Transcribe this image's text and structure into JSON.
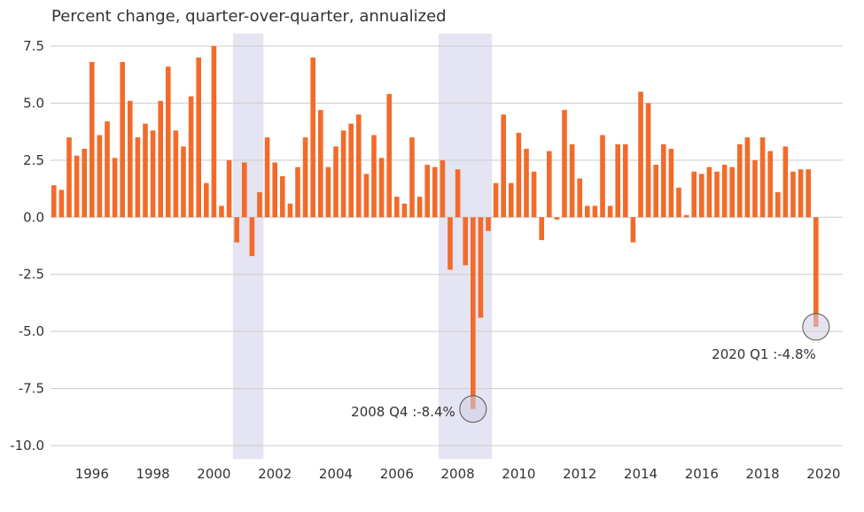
{
  "chart_data": {
    "type": "bar",
    "title": "Percent change, quarter-over-quarter, annualized",
    "xlabel": "",
    "ylabel": "",
    "ylim": [
      -10.0,
      7.5
    ],
    "yticks": [
      "7.5",
      "5.0",
      "2.5",
      "0.0",
      "-2.5",
      "-5.0",
      "-7.5",
      "-10.0"
    ],
    "xticks": [
      "1996",
      "1998",
      "2000",
      "2002",
      "2004",
      "2006",
      "2008",
      "2010",
      "2012",
      "2014",
      "2016",
      "2018",
      "2020"
    ],
    "grid": true,
    "start_period": "1995 Q1",
    "frequency": "quarterly",
    "colors": {
      "bar": "#f26b2a",
      "recession": "#e4e4f2",
      "grid": "#cccccc"
    },
    "recessions": [
      {
        "start": "2001 Q1",
        "end": "2001 Q4"
      },
      {
        "start": "2007 Q4",
        "end": "2009 Q2"
      }
    ],
    "series": [
      {
        "values": [
          1.4,
          1.2,
          3.5,
          2.7,
          3.0,
          6.8,
          3.6,
          4.2,
          2.6,
          6.8,
          5.1,
          3.5,
          4.1,
          3.8,
          5.1,
          6.6,
          3.8,
          3.1,
          5.3,
          7.0,
          1.5,
          7.5,
          0.5,
          2.5,
          -1.1,
          2.4,
          -1.7,
          1.1,
          3.5,
          2.4,
          1.8,
          0.6,
          2.2,
          3.5,
          7.0,
          4.7,
          2.2,
          3.1,
          3.8,
          4.1,
          4.5,
          1.9,
          3.6,
          2.6,
          5.4,
          0.9,
          0.6,
          3.5,
          0.9,
          2.3,
          2.2,
          2.5,
          -2.3,
          2.1,
          -2.1,
          -8.4,
          -4.4,
          -0.6,
          1.5,
          4.5,
          1.5,
          3.7,
          3.0,
          2.0,
          -1.0,
          2.9,
          -0.1,
          4.7,
          3.2,
          1.7,
          0.5,
          0.5,
          3.6,
          0.5,
          3.2,
          3.2,
          -1.1,
          5.5,
          5.0,
          2.3,
          3.2,
          3.0,
          1.3,
          0.1,
          2.0,
          1.9,
          2.2,
          2.0,
          2.3,
          2.2,
          3.2,
          3.5,
          2.5,
          3.5,
          2.9,
          1.1,
          3.1,
          2.0,
          2.1,
          2.1,
          -4.8
        ]
      }
    ],
    "annotations": [
      {
        "text": "2008 Q4 :-8.4%",
        "index": 55,
        "value": -8.4,
        "anchor": "left-of-point"
      },
      {
        "text": "2020 Q1 :-4.8%",
        "index": 100,
        "value": -4.8,
        "anchor": "below-left-of-point"
      }
    ]
  }
}
